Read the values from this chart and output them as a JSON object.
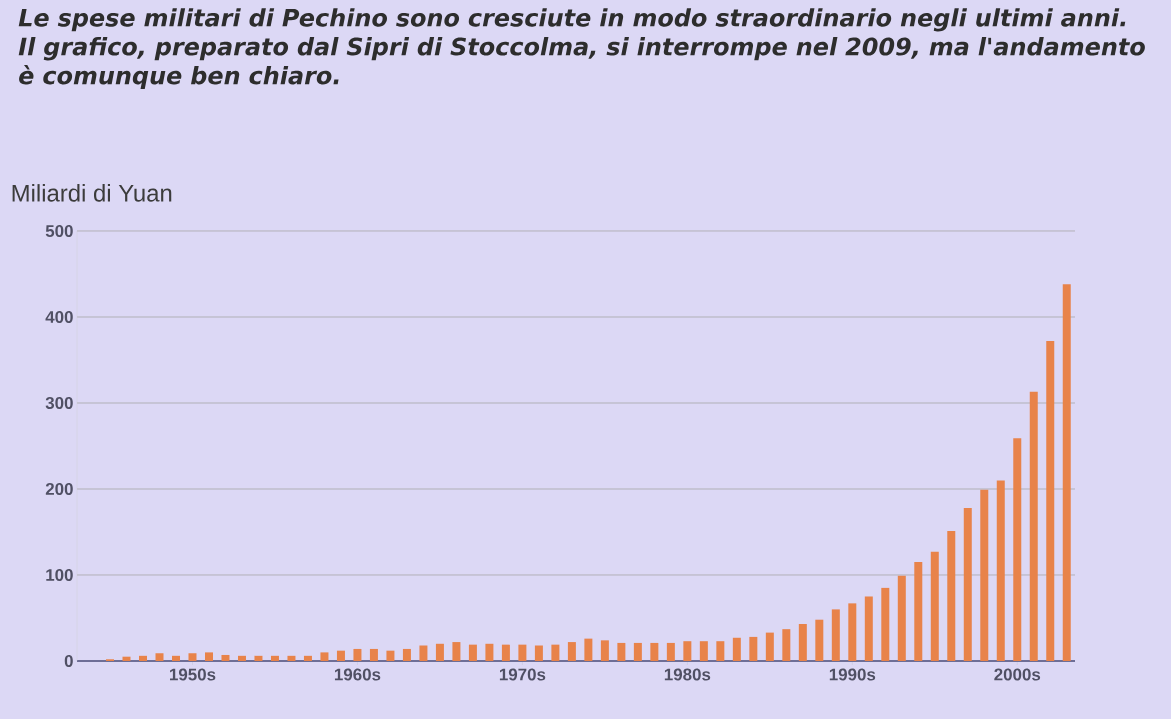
{
  "chart_data": {
    "type": "bar",
    "title": "Le spese militari di Pechino sono cresciute in modo straordinario negli ultimi anni. Il grafico, preparato dal Sipri di Stoccolma, si interrompe nel 2009, ma l'andamento è comunque ben chiaro.",
    "ylabel": "Miliardi di Yuan",
    "categories": [
      null,
      null,
      null,
      null,
      null,
      "1950s",
      null,
      null,
      null,
      null,
      null,
      null,
      null,
      null,
      null,
      "1960s",
      null,
      null,
      null,
      null,
      null,
      null,
      null,
      null,
      null,
      "1970s",
      null,
      null,
      null,
      null,
      null,
      null,
      null,
      null,
      null,
      "1980s",
      null,
      null,
      null,
      null,
      null,
      null,
      null,
      null,
      null,
      "1990s",
      null,
      null,
      null,
      null,
      null,
      null,
      null,
      null,
      null,
      "2000s",
      null,
      null,
      null
    ],
    "values": [
      2,
      5,
      6,
      9,
      6,
      9,
      10,
      7,
      6,
      6,
      6,
      6,
      6,
      10,
      12,
      14,
      14,
      12,
      14,
      18,
      20,
      22,
      19,
      20,
      19,
      19,
      18,
      19,
      22,
      26,
      24,
      21,
      21,
      21,
      21,
      23,
      23,
      23,
      27,
      28,
      33,
      37,
      43,
      48,
      60,
      67,
      75,
      85,
      99,
      115,
      127,
      151,
      178,
      199,
      210,
      259,
      313,
      372,
      438
    ],
    "color": "#e8834a",
    "ylim": [
      0,
      500
    ],
    "yticks": [
      0,
      100,
      200,
      300,
      400,
      500
    ],
    "grid": "y"
  }
}
